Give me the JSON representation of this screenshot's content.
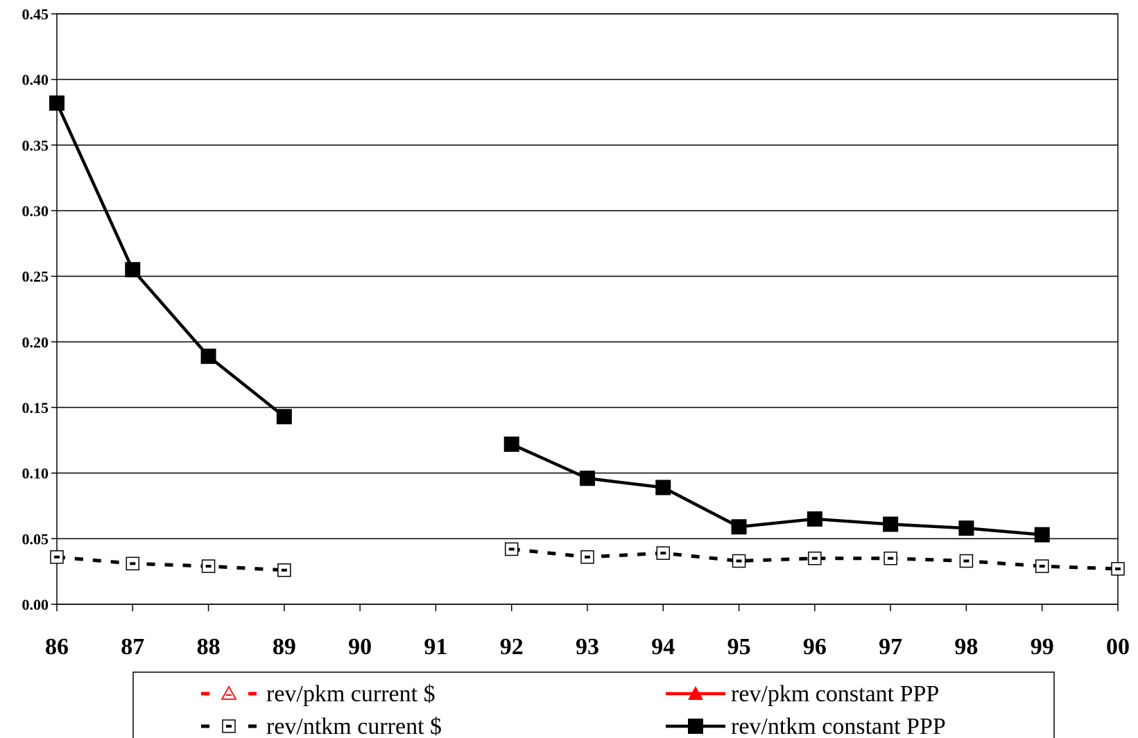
{
  "chart_data": {
    "type": "line",
    "title": "",
    "xlabel": "",
    "ylabel": "",
    "categories": [
      "86",
      "87",
      "88",
      "89",
      "90",
      "91",
      "92",
      "93",
      "94",
      "95",
      "96",
      "97",
      "98",
      "99",
      "00"
    ],
    "ylim": [
      0,
      0.45
    ],
    "yticks": [
      "0.00",
      "0.05",
      "0.10",
      "0.15",
      "0.20",
      "0.25",
      "0.30",
      "0.35",
      "0.40",
      "0.45"
    ],
    "grid": "horizontal",
    "legend_position": "bottom",
    "series": [
      {
        "name": "rev/pkm current $",
        "color": "#ff0000",
        "line": "dashed",
        "marker": "open-triangle",
        "values": [
          null,
          null,
          null,
          null,
          null,
          null,
          null,
          null,
          null,
          null,
          null,
          null,
          null,
          null,
          null
        ]
      },
      {
        "name": "rev/pkm constant PPP",
        "color": "#ff0000",
        "line": "solid",
        "marker": "filled-triangle",
        "values": [
          null,
          null,
          null,
          null,
          null,
          null,
          null,
          null,
          null,
          null,
          null,
          null,
          null,
          null,
          null
        ]
      },
      {
        "name": "rev/ntkm current $",
        "color": "#000000",
        "line": "dashed",
        "marker": "open-square",
        "values": [
          0.036,
          0.031,
          0.029,
          0.026,
          null,
          null,
          0.042,
          0.036,
          0.039,
          0.033,
          0.035,
          0.035,
          0.033,
          0.029,
          0.027
        ]
      },
      {
        "name": "rev/ntkm constant PPP",
        "color": "#000000",
        "line": "solid",
        "marker": "filled-square",
        "values": [
          0.382,
          0.255,
          0.189,
          0.143,
          null,
          null,
          0.122,
          0.096,
          0.089,
          0.059,
          0.065,
          0.061,
          0.058,
          0.053,
          null
        ]
      }
    ]
  }
}
